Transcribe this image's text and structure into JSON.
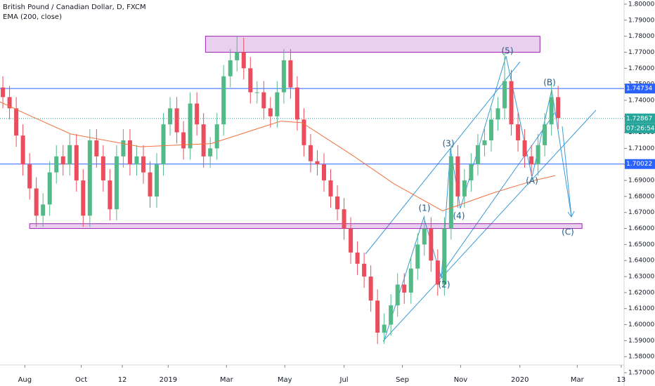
{
  "chart_data": {
    "type": "candlestick",
    "title": "British Pound / Canadian Dollar, D, FXCM",
    "up_color": "#53b987",
    "down_color": "#eb4d5c",
    "xlim": [
      0,
      653
    ],
    "xticks": [
      {
        "value": 26,
        "label": "Aug"
      },
      {
        "value": 85,
        "label": "Oct"
      },
      {
        "value": 128,
        "label": "12"
      },
      {
        "value": 176,
        "label": "2019"
      },
      {
        "value": 237,
        "label": "Mar"
      },
      {
        "value": 298,
        "label": "May"
      },
      {
        "value": 360,
        "label": "Jul"
      },
      {
        "value": 421,
        "label": "Sep"
      },
      {
        "value": 482,
        "label": "Nov"
      },
      {
        "value": 544,
        "label": "2020"
      },
      {
        "value": 604,
        "label": "Mar"
      },
      {
        "value": 650,
        "label": "13"
      }
    ],
    "ylim": [
      1.5617,
      1.8026
    ],
    "yticks": [
      {
        "value": 1.57,
        "label": "1.57000"
      },
      {
        "value": 1.58,
        "label": "1.58000"
      },
      {
        "value": 1.59,
        "label": "1.59000"
      },
      {
        "value": 1.6,
        "label": "1.60000"
      },
      {
        "value": 1.61,
        "label": "1.61000"
      },
      {
        "value": 1.62,
        "label": "1.62000"
      },
      {
        "value": 1.63,
        "label": "1.63000"
      },
      {
        "value": 1.64,
        "label": "1.64000"
      },
      {
        "value": 1.65,
        "label": "1.65000"
      },
      {
        "value": 1.66,
        "label": "1.66000"
      },
      {
        "value": 1.67,
        "label": "1.67000"
      },
      {
        "value": 1.68,
        "label": "1.68000"
      },
      {
        "value": 1.69,
        "label": "1.69000"
      },
      {
        "value": 1.7,
        "label": "1.70000"
      },
      {
        "value": 1.71,
        "label": "1.71000"
      },
      {
        "value": 1.72,
        "label": "1.72000"
      },
      {
        "value": 1.73,
        "label": "1.73000"
      },
      {
        "value": 1.74,
        "label": "1.74000"
      },
      {
        "value": 1.75,
        "label": "1.75000"
      },
      {
        "value": 1.76,
        "label": "1.76000"
      },
      {
        "value": 1.77,
        "label": "1.77000"
      },
      {
        "value": 1.78,
        "label": "1.78000"
      },
      {
        "value": 1.79,
        "label": "1.79000"
      },
      {
        "value": 1.8,
        "label": "1.80000"
      }
    ],
    "grid": false,
    "series": {
      "x": [
        3,
        10,
        17,
        24,
        31,
        38,
        45,
        52,
        59,
        66,
        73,
        80,
        87,
        94,
        101,
        108,
        115,
        122,
        129,
        136,
        143,
        150,
        157,
        164,
        171,
        178,
        185,
        192,
        199,
        206,
        213,
        220,
        227,
        234,
        241,
        248,
        255,
        262,
        269,
        276,
        283,
        290,
        297,
        304,
        311,
        318,
        325,
        332,
        339,
        346,
        353,
        360,
        367,
        374,
        381,
        388,
        395,
        402,
        409,
        416,
        423,
        430,
        437,
        444,
        451,
        458,
        465,
        472,
        479,
        486,
        493,
        500,
        507,
        514,
        521,
        528,
        535,
        542,
        549,
        556,
        563,
        570,
        577,
        584
      ],
      "open": [
        1.748,
        1.742,
        1.735,
        1.718,
        1.7,
        1.685,
        1.668,
        1.675,
        1.695,
        1.705,
        1.7,
        1.712,
        1.69,
        1.668,
        1.715,
        1.705,
        1.69,
        1.672,
        1.705,
        1.715,
        1.7,
        1.705,
        1.695,
        1.68,
        1.7,
        1.725,
        1.735,
        1.72,
        1.71,
        1.738,
        1.725,
        1.705,
        1.71,
        1.725,
        1.755,
        1.765,
        1.77,
        1.76,
        1.745,
        1.745,
        1.735,
        1.73,
        1.745,
        1.765,
        1.748,
        1.728,
        1.712,
        1.702,
        1.7,
        1.69,
        1.68,
        1.672,
        1.66,
        1.645,
        1.638,
        1.63,
        1.615,
        1.595,
        1.6,
        1.612,
        1.625,
        1.62,
        1.635,
        1.65,
        1.66,
        1.64,
        1.625,
        1.66,
        1.705,
        1.68,
        1.69,
        1.7,
        1.712,
        1.715,
        1.728,
        1.735,
        1.752,
        1.725,
        1.715,
        1.705,
        1.7,
        1.712,
        1.725,
        1.742
      ],
      "high": [
        1.755,
        1.749,
        1.742,
        1.725,
        1.707,
        1.692,
        1.682,
        1.702,
        1.712,
        1.712,
        1.719,
        1.719,
        1.697,
        1.722,
        1.722,
        1.712,
        1.697,
        1.712,
        1.722,
        1.722,
        1.712,
        1.712,
        1.702,
        1.707,
        1.732,
        1.742,
        1.742,
        1.727,
        1.745,
        1.745,
        1.732,
        1.717,
        1.732,
        1.762,
        1.772,
        1.78,
        1.779,
        1.767,
        1.752,
        1.752,
        1.742,
        1.752,
        1.772,
        1.772,
        1.755,
        1.735,
        1.719,
        1.709,
        1.707,
        1.697,
        1.687,
        1.679,
        1.667,
        1.652,
        1.645,
        1.637,
        1.622,
        1.607,
        1.619,
        1.632,
        1.632,
        1.642,
        1.657,
        1.668,
        1.667,
        1.647,
        1.667,
        1.712,
        1.712,
        1.697,
        1.707,
        1.719,
        1.722,
        1.735,
        1.742,
        1.77,
        1.759,
        1.732,
        1.722,
        1.712,
        1.719,
        1.732,
        1.75,
        1.749
      ],
      "low": [
        1.735,
        1.728,
        1.711,
        1.693,
        1.678,
        1.661,
        1.661,
        1.668,
        1.688,
        1.693,
        1.693,
        1.683,
        1.661,
        1.661,
        1.698,
        1.683,
        1.665,
        1.665,
        1.698,
        1.693,
        1.693,
        1.688,
        1.673,
        1.673,
        1.693,
        1.718,
        1.713,
        1.703,
        1.703,
        1.718,
        1.698,
        1.698,
        1.703,
        1.718,
        1.748,
        1.758,
        1.753,
        1.738,
        1.738,
        1.728,
        1.723,
        1.723,
        1.738,
        1.741,
        1.721,
        1.705,
        1.695,
        1.693,
        1.683,
        1.673,
        1.665,
        1.653,
        1.638,
        1.631,
        1.623,
        1.608,
        1.588,
        1.588,
        1.593,
        1.605,
        1.613,
        1.613,
        1.628,
        1.643,
        1.633,
        1.618,
        1.618,
        1.653,
        1.673,
        1.673,
        1.683,
        1.693,
        1.705,
        1.708,
        1.721,
        1.728,
        1.718,
        1.708,
        1.698,
        1.693,
        1.693,
        1.705,
        1.718,
        1.722
      ],
      "close": [
        1.742,
        1.735,
        1.718,
        1.7,
        1.685,
        1.668,
        1.675,
        1.695,
        1.705,
        1.7,
        1.712,
        1.69,
        1.668,
        1.715,
        1.705,
        1.69,
        1.672,
        1.705,
        1.715,
        1.7,
        1.705,
        1.695,
        1.68,
        1.7,
        1.725,
        1.735,
        1.72,
        1.71,
        1.738,
        1.725,
        1.705,
        1.71,
        1.725,
        1.755,
        1.765,
        1.77,
        1.76,
        1.745,
        1.745,
        1.735,
        1.73,
        1.745,
        1.765,
        1.748,
        1.728,
        1.712,
        1.702,
        1.7,
        1.69,
        1.68,
        1.672,
        1.66,
        1.645,
        1.638,
        1.63,
        1.615,
        1.595,
        1.6,
        1.612,
        1.625,
        1.62,
        1.635,
        1.65,
        1.66,
        1.64,
        1.625,
        1.66,
        1.705,
        1.68,
        1.69,
        1.7,
        1.712,
        1.715,
        1.728,
        1.735,
        1.752,
        1.725,
        1.715,
        1.705,
        1.7,
        1.712,
        1.725,
        1.742,
        1.729
      ]
    },
    "ema": {
      "name": "EMA (200, close)",
      "color": "#f0713e",
      "x": [
        0,
        29,
        74,
        147,
        221,
        294,
        316,
        368,
        412,
        463,
        515,
        559,
        581
      ],
      "values": [
        1.739,
        1.731,
        1.719,
        1.711,
        1.713,
        1.727,
        1.726,
        1.706,
        1.688,
        1.671,
        1.682,
        1.69,
        1.693
      ]
    },
    "levels": [
      {
        "value": 1.74734,
        "color": "#2962ff"
      },
      {
        "value": 1.70022,
        "color": "#2962ff"
      }
    ],
    "last_price": 1.72867,
    "last_color": "#26a69a",
    "countdown": "07:26:54",
    "zones": [
      {
        "x": [
          215,
          565
        ],
        "y": [
          1.77,
          1.78
        ]
      },
      {
        "x": [
          31,
          609
        ],
        "y": [
          1.66,
          1.663
        ]
      }
    ],
    "zone_color": "#9c27b0",
    "annotations": [
      "(1)",
      "(2)",
      "(3)",
      "(4)",
      "(5)",
      "(A)",
      "(B)",
      "(C)"
    ]
  }
}
